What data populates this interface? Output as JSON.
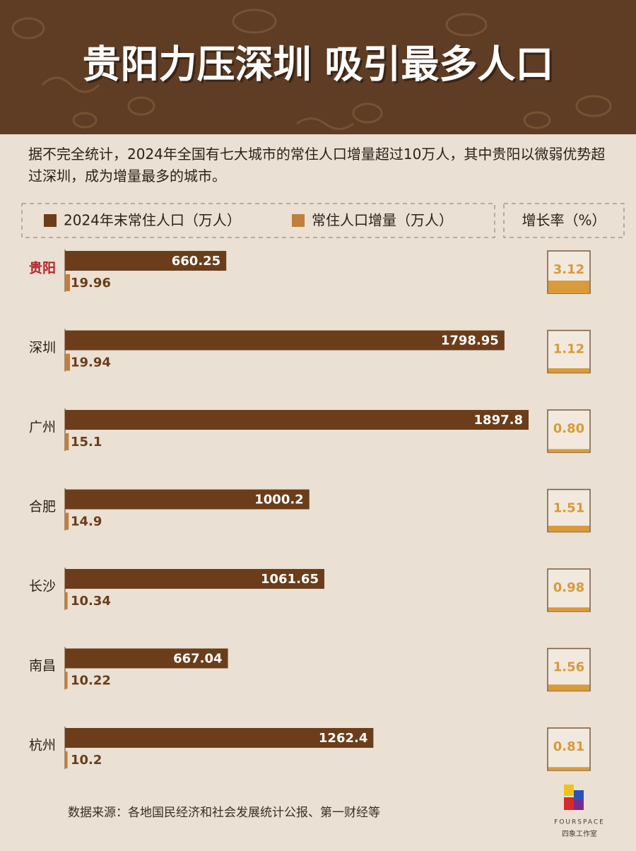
{
  "chart_data": {
    "type": "bar",
    "title": "贵阳力压深圳 吸引最多人口",
    "subtitle": "据不完全统计，2024年全国有七大城市的常住人口增量超过10万人，其中贵阳以微弱优势超过深圳，成为增量最多的城市。",
    "categories": [
      "贵阳",
      "深圳",
      "广州",
      "合肥",
      "长沙",
      "南昌",
      "杭州"
    ],
    "series": [
      {
        "name": "2024年末常住人口（万人）",
        "color": "#6b3d1a",
        "values": [
          660.25,
          1798.95,
          1897.8,
          1000.2,
          1061.65,
          667.04,
          1262.4
        ]
      },
      {
        "name": "常住人口增量（万人）",
        "color": "#c07f3a",
        "values": [
          19.96,
          19.94,
          15.1,
          14.9,
          10.34,
          10.22,
          10.2
        ]
      },
      {
        "name": "增长率（%）",
        "color": "#d89a3a",
        "values": [
          3.12,
          1.12,
          0.8,
          1.51,
          0.98,
          1.56,
          0.81
        ],
        "value_labels": [
          "3.12",
          "1.12",
          "0.80",
          "1.51",
          "0.98",
          "1.56",
          "0.81"
        ]
      }
    ],
    "highlight_index": 0,
    "highlight_color": "#b3262b",
    "source": "数据来源：各地国民经济和社会发展统计公报、第一财经等"
  },
  "logo": {
    "name": "FOURSPACE",
    "studio": "四象工作室"
  }
}
